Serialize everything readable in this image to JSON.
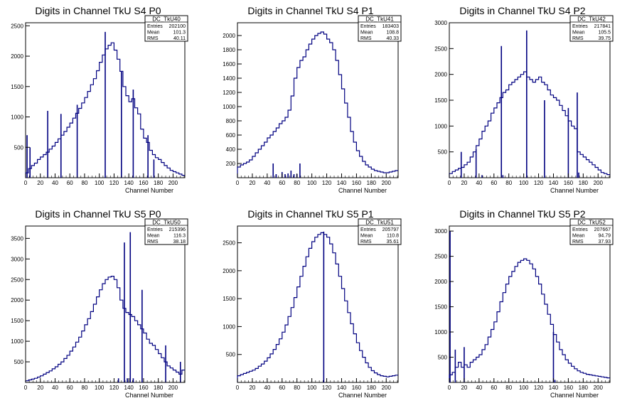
{
  "colors": {
    "histogram": "#000080",
    "axes": "#000000",
    "background": "#ffffff"
  },
  "chart_data": [
    {
      "type": "histogram",
      "title": "Digits in Channel TkU S4 P0",
      "xlabel": "Channel Number",
      "xlim": [
        0,
        216
      ],
      "ylim": [
        0,
        2550
      ],
      "xticks": [
        "0",
        "20",
        "40",
        "60",
        "80",
        "100",
        "120",
        "140",
        "160",
        "180",
        "200"
      ],
      "yticks": [
        "500",
        "1000",
        "1500",
        "2000",
        "2500"
      ],
      "stats": {
        "name": "DC_TkU40",
        "entries": "202100",
        "mean": "101.3",
        "rms": "40.11"
      },
      "x": [
        0,
        4,
        8,
        12,
        16,
        20,
        24,
        28,
        32,
        36,
        40,
        44,
        48,
        52,
        56,
        60,
        64,
        68,
        72,
        76,
        80,
        84,
        88,
        92,
        96,
        100,
        104,
        108,
        112,
        116,
        120,
        124,
        128,
        132,
        136,
        140,
        144,
        148,
        152,
        156,
        160,
        164,
        168,
        172,
        176,
        180,
        184,
        188,
        192,
        196,
        200,
        204,
        208,
        212
      ],
      "values": [
        80,
        150,
        200,
        240,
        300,
        340,
        380,
        420,
        470,
        520,
        580,
        640,
        700,
        760,
        830,
        900,
        980,
        1060,
        1140,
        1230,
        1320,
        1420,
        1530,
        1630,
        1760,
        1900,
        2020,
        2120,
        2180,
        2220,
        2100,
        1950,
        1750,
        1500,
        1350,
        1250,
        1300,
        1150,
        1050,
        800,
        650,
        580,
        450,
        380,
        330,
        300,
        250,
        200,
        160,
        120,
        100,
        80,
        60,
        40
      ],
      "spikes": [
        [
          2,
          700
        ],
        [
          6,
          500
        ],
        [
          30,
          1100
        ],
        [
          48,
          1050
        ],
        [
          70,
          1200
        ],
        [
          108,
          2400
        ],
        [
          130,
          1750
        ],
        [
          146,
          1450
        ],
        [
          166,
          700
        ],
        [
          174,
          300
        ]
      ]
    },
    {
      "type": "histogram",
      "title": "Digits in Channel TkU S4 P1",
      "xlabel": "Channel Number",
      "xlim": [
        0,
        216
      ],
      "ylim": [
        0,
        2180
      ],
      "xticks": [
        "0",
        "20",
        "40",
        "60",
        "80",
        "100",
        "120",
        "140",
        "160",
        "180",
        "200"
      ],
      "yticks": [
        "200",
        "400",
        "600",
        "800",
        "1000",
        "1200",
        "1400",
        "1600",
        "1800",
        "2000"
      ],
      "stats": {
        "name": "DC_TkU41",
        "entries": "183403",
        "mean": "108.8",
        "rms": "40.33"
      },
      "x": [
        0,
        4,
        8,
        12,
        16,
        20,
        24,
        28,
        32,
        36,
        40,
        44,
        48,
        52,
        56,
        60,
        64,
        68,
        72,
        76,
        80,
        84,
        88,
        92,
        96,
        100,
        104,
        108,
        112,
        116,
        120,
        124,
        128,
        132,
        136,
        140,
        144,
        148,
        152,
        156,
        160,
        164,
        168,
        172,
        176,
        180,
        184,
        188,
        192,
        196,
        200,
        204,
        208,
        212
      ],
      "values": [
        150,
        180,
        200,
        220,
        250,
        300,
        350,
        400,
        450,
        500,
        560,
        600,
        650,
        700,
        760,
        800,
        850,
        950,
        1150,
        1400,
        1550,
        1650,
        1700,
        1800,
        1880,
        1950,
        2000,
        2030,
        2050,
        2020,
        1950,
        1900,
        1800,
        1650,
        1450,
        1250,
        1050,
        850,
        650,
        500,
        380,
        300,
        230,
        180,
        150,
        120,
        100,
        90,
        80,
        70,
        70,
        80,
        90,
        100
      ],
      "spikes": [
        [
          48,
          200
        ],
        [
          52,
          50
        ],
        [
          60,
          80
        ],
        [
          64,
          50
        ],
        [
          68,
          60
        ],
        [
          72,
          100
        ],
        [
          76,
          50
        ],
        [
          80,
          50
        ],
        [
          84,
          200
        ]
      ]
    },
    {
      "type": "histogram",
      "title": "Digits in Channel TkU S4 P2",
      "xlabel": "Channel Number",
      "xlim": [
        0,
        216
      ],
      "ylim": [
        0,
        3000
      ],
      "xticks": [
        "0",
        "20",
        "40",
        "60",
        "80",
        "100",
        "120",
        "140",
        "160",
        "180",
        "200"
      ],
      "yticks": [
        "500",
        "1000",
        "1500",
        "2000",
        "2500",
        "3000"
      ],
      "stats": {
        "name": "DC_TkU42",
        "entries": "217841",
        "mean": "105.5",
        "rms": "39.75"
      },
      "x": [
        0,
        4,
        8,
        12,
        16,
        20,
        24,
        28,
        32,
        36,
        40,
        44,
        48,
        52,
        56,
        60,
        64,
        68,
        72,
        76,
        80,
        84,
        88,
        92,
        96,
        100,
        104,
        108,
        112,
        116,
        120,
        124,
        128,
        132,
        136,
        140,
        144,
        148,
        152,
        156,
        160,
        164,
        168,
        172,
        176,
        180,
        184,
        188,
        192,
        196,
        200,
        204,
        208,
        212
      ],
      "values": [
        80,
        120,
        150,
        180,
        200,
        250,
        300,
        400,
        500,
        620,
        750,
        900,
        1000,
        1100,
        1250,
        1350,
        1450,
        1550,
        1650,
        1700,
        1800,
        1850,
        1900,
        1950,
        2000,
        2050,
        1950,
        1900,
        1850,
        1900,
        1950,
        1850,
        1800,
        1700,
        1600,
        1550,
        1500,
        1400,
        1300,
        1200,
        1100,
        1000,
        950,
        500,
        450,
        400,
        350,
        300,
        250,
        200,
        150,
        100,
        80,
        60
      ],
      "spikes": [
        [
          16,
          500
        ],
        [
          36,
          550
        ],
        [
          44,
          50
        ],
        [
          72,
          50
        ],
        [
          70,
          2550
        ],
        [
          104,
          2850
        ],
        [
          128,
          1500
        ],
        [
          160,
          1350
        ],
        [
          172,
          1650
        ],
        [
          174,
          100
        ]
      ]
    },
    {
      "type": "histogram",
      "title": "Digits in Channel TkU S5 P0",
      "xlabel": "Channel Number",
      "xlim": [
        0,
        216
      ],
      "ylim": [
        0,
        3800
      ],
      "xticks": [
        "0",
        "20",
        "40",
        "60",
        "80",
        "100",
        "120",
        "140",
        "160",
        "180",
        "200"
      ],
      "yticks": [
        "500",
        "1000",
        "1500",
        "2000",
        "2500",
        "3000",
        "3500"
      ],
      "stats": {
        "name": "DC_TkU50",
        "entries": "215396",
        "mean": "116.3",
        "rms": "38.18"
      },
      "x": [
        0,
        4,
        8,
        12,
        16,
        20,
        24,
        28,
        32,
        36,
        40,
        44,
        48,
        52,
        56,
        60,
        64,
        68,
        72,
        76,
        80,
        84,
        88,
        92,
        96,
        100,
        104,
        108,
        112,
        116,
        120,
        124,
        128,
        132,
        136,
        140,
        144,
        148,
        152,
        156,
        160,
        164,
        168,
        172,
        176,
        180,
        184,
        188,
        192,
        196,
        200,
        204,
        208,
        212
      ],
      "values": [
        40,
        60,
        80,
        100,
        130,
        160,
        200,
        240,
        280,
        330,
        380,
        440,
        500,
        580,
        660,
        760,
        860,
        980,
        1100,
        1250,
        1400,
        1550,
        1720,
        1900,
        2080,
        2250,
        2400,
        2500,
        2560,
        2580,
        2500,
        2300,
        2000,
        1800,
        1700,
        1650,
        1600,
        1500,
        1400,
        1300,
        1200,
        1050,
        950,
        900,
        800,
        700,
        600,
        500,
        400,
        350,
        300,
        250,
        200,
        300
      ],
      "spikes": [
        [
          126,
          100
        ],
        [
          134,
          3400
        ],
        [
          138,
          100
        ],
        [
          142,
          3650
        ],
        [
          146,
          100
        ],
        [
          158,
          2250
        ],
        [
          190,
          900
        ],
        [
          210,
          500
        ]
      ]
    },
    {
      "type": "histogram",
      "title": "Digits in Channel TkU S5 P1",
      "xlabel": "Channel Number",
      "xlim": [
        0,
        216
      ],
      "ylim": [
        0,
        2800
      ],
      "xticks": [
        "0",
        "20",
        "40",
        "60",
        "80",
        "100",
        "120",
        "140",
        "160",
        "180",
        "200"
      ],
      "yticks": [
        "500",
        "1000",
        "1500",
        "2000",
        "2500"
      ],
      "stats": {
        "name": "DC_TkU51",
        "entries": "205797",
        "mean": "110.8",
        "rms": "35.61"
      },
      "x": [
        0,
        4,
        8,
        12,
        16,
        20,
        24,
        28,
        32,
        36,
        40,
        44,
        48,
        52,
        56,
        60,
        64,
        68,
        72,
        76,
        80,
        84,
        88,
        92,
        96,
        100,
        104,
        108,
        112,
        116,
        120,
        124,
        128,
        132,
        136,
        140,
        144,
        148,
        152,
        156,
        160,
        164,
        168,
        172,
        176,
        180,
        184,
        188,
        192,
        196,
        200,
        204,
        208,
        212
      ],
      "values": [
        120,
        140,
        160,
        180,
        200,
        220,
        250,
        290,
        330,
        380,
        440,
        510,
        590,
        680,
        780,
        900,
        1030,
        1180,
        1340,
        1520,
        1710,
        1900,
        2080,
        2250,
        2400,
        2520,
        2600,
        2650,
        2680,
        2650,
        2600,
        2480,
        2320,
        2120,
        1900,
        1680,
        1460,
        1250,
        1050,
        870,
        710,
        570,
        450,
        350,
        270,
        210,
        170,
        140,
        120,
        110,
        100,
        110,
        120,
        130
      ],
      "spikes": [
        [
          116,
          2700
        ]
      ]
    },
    {
      "type": "histogram",
      "title": "Digits in Channel TkU S5 P2",
      "xlabel": "Channel Number",
      "xlim": [
        0,
        216
      ],
      "ylim": [
        0,
        3100
      ],
      "xticks": [
        "0",
        "20",
        "40",
        "60",
        "80",
        "100",
        "120",
        "140",
        "160",
        "180",
        "200"
      ],
      "yticks": [
        "500",
        "1000",
        "1500",
        "2000",
        "2500",
        "3000"
      ],
      "stats": {
        "name": "DC_TkU52",
        "entries": "207667",
        "mean": "94.79",
        "rms": "37.93"
      },
      "x": [
        0,
        4,
        8,
        12,
        16,
        20,
        24,
        28,
        32,
        36,
        40,
        44,
        48,
        52,
        56,
        60,
        64,
        68,
        72,
        76,
        80,
        84,
        88,
        92,
        96,
        100,
        104,
        108,
        112,
        116,
        120,
        124,
        128,
        132,
        136,
        140,
        144,
        148,
        152,
        156,
        160,
        164,
        168,
        172,
        176,
        180,
        184,
        188,
        192,
        196,
        200,
        204,
        208,
        212
      ],
      "values": [
        150,
        200,
        300,
        400,
        300,
        350,
        300,
        400,
        450,
        500,
        550,
        650,
        750,
        900,
        1050,
        1200,
        1400,
        1600,
        1780,
        1950,
        2100,
        2200,
        2300,
        2380,
        2420,
        2450,
        2420,
        2350,
        2250,
        2100,
        1950,
        1750,
        1550,
        1350,
        1150,
        950,
        800,
        650,
        550,
        450,
        380,
        320,
        270,
        230,
        200,
        180,
        160,
        150,
        140,
        130,
        120,
        110,
        100,
        90
      ],
      "spikes": [
        [
          1,
          3000
        ],
        [
          8,
          650
        ],
        [
          20,
          700
        ],
        [
          140,
          1000
        ],
        [
          142,
          50
        ]
      ]
    }
  ]
}
